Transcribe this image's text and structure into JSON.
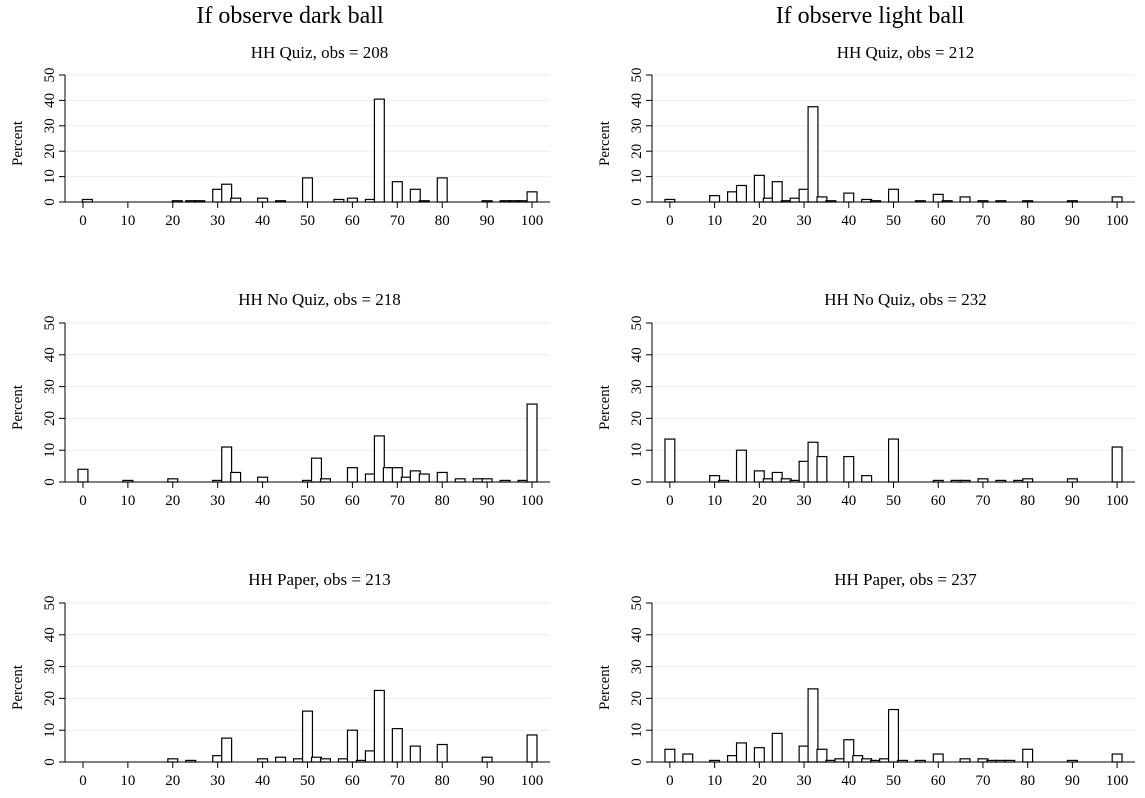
{
  "column_titles": [
    "If observe dark ball",
    "If observe light ball"
  ],
  "chart_data": [
    {
      "type": "bar",
      "title": "HH Quiz, obs = 208",
      "ylabel": "Percent",
      "xlim": [
        -4,
        104
      ],
      "ylim": [
        0,
        50
      ],
      "xticks": [
        0,
        10,
        20,
        30,
        40,
        50,
        60,
        70,
        80,
        90,
        100
      ],
      "yticks": [
        0,
        10,
        20,
        30,
        40,
        50
      ],
      "bin_width": 2.2,
      "x": [
        1,
        21,
        24,
        26,
        30,
        32,
        34,
        40,
        44,
        50,
        57,
        60,
        64,
        66,
        70,
        74,
        76,
        80,
        90,
        94,
        96,
        98,
        100
      ],
      "values": [
        1,
        0.5,
        0.5,
        0.5,
        5,
        7,
        1.5,
        1.5,
        0.5,
        9.5,
        1,
        1.5,
        1,
        40.5,
        8,
        5,
        0.5,
        9.5,
        0.5,
        0.5,
        0.5,
        0.5,
        4
      ]
    },
    {
      "type": "bar",
      "title": "HH Quiz, obs = 212",
      "ylabel": "Percent",
      "xlim": [
        -4,
        104
      ],
      "ylim": [
        0,
        50
      ],
      "xticks": [
        0,
        10,
        20,
        30,
        40,
        50,
        60,
        70,
        80,
        90,
        100
      ],
      "yticks": [
        0,
        10,
        20,
        30,
        40,
        50
      ],
      "bin_width": 2.2,
      "x": [
        0,
        10,
        14,
        16,
        20,
        22,
        24,
        26,
        28,
        30,
        32,
        34,
        36,
        40,
        44,
        46,
        50,
        56,
        60,
        62,
        66,
        70,
        74,
        80,
        90,
        100
      ],
      "values": [
        1,
        2.5,
        4,
        6.5,
        10.5,
        1.5,
        8,
        0.5,
        1.5,
        5,
        37.5,
        2,
        0.5,
        3.5,
        1,
        0.5,
        5,
        0.5,
        3,
        0.5,
        2,
        0.5,
        0.5,
        0.5,
        0.5,
        2
      ]
    },
    {
      "type": "bar",
      "title": "HH No Quiz, obs = 218",
      "ylabel": "Percent",
      "xlim": [
        -4,
        104
      ],
      "ylim": [
        0,
        50
      ],
      "xticks": [
        0,
        10,
        20,
        30,
        40,
        50,
        60,
        70,
        80,
        90,
        100
      ],
      "yticks": [
        0,
        10,
        20,
        30,
        40,
        50
      ],
      "bin_width": 2.2,
      "x": [
        0,
        10,
        20,
        30,
        32,
        34,
        40,
        50,
        52,
        54,
        60,
        64,
        66,
        68,
        70,
        72,
        74,
        76,
        80,
        84,
        88,
        90,
        94,
        98,
        100
      ],
      "values": [
        4,
        0.5,
        1,
        0.5,
        11,
        3,
        1.5,
        0.5,
        7.5,
        1,
        4.5,
        2.5,
        14.5,
        4.5,
        4.5,
        1.5,
        3.5,
        2.5,
        3,
        1,
        1,
        1,
        0.5,
        0.5,
        24.5
      ]
    },
    {
      "type": "bar",
      "title": "HH No Quiz, obs = 232",
      "ylabel": "Percent",
      "xlim": [
        -4,
        104
      ],
      "ylim": [
        0,
        50
      ],
      "xticks": [
        0,
        10,
        20,
        30,
        40,
        50,
        60,
        70,
        80,
        90,
        100
      ],
      "yticks": [
        0,
        10,
        20,
        30,
        40,
        50
      ],
      "bin_width": 2.2,
      "x": [
        0,
        10,
        12,
        16,
        20,
        22,
        24,
        26,
        28,
        30,
        32,
        34,
        40,
        44,
        50,
        60,
        64,
        66,
        70,
        74,
        78,
        80,
        90,
        100
      ],
      "values": [
        13.5,
        2,
        0.5,
        10,
        3.5,
        1,
        3,
        1,
        0.5,
        6.5,
        12.5,
        8,
        8,
        2,
        13.5,
        0.5,
        0.5,
        0.5,
        1,
        0.5,
        0.5,
        1,
        1,
        11
      ]
    },
    {
      "type": "bar",
      "title": "HH Paper, obs = 213",
      "ylabel": "Percent",
      "xlim": [
        -4,
        104
      ],
      "ylim": [
        0,
        50
      ],
      "xticks": [
        0,
        10,
        20,
        30,
        40,
        50,
        60,
        70,
        80,
        90,
        100
      ],
      "yticks": [
        0,
        10,
        20,
        30,
        40,
        50
      ],
      "bin_width": 2.2,
      "x": [
        20,
        24,
        30,
        32,
        40,
        44,
        48,
        50,
        52,
        54,
        58,
        60,
        62,
        64,
        66,
        70,
        74,
        80,
        90,
        100
      ],
      "values": [
        1,
        0.5,
        2,
        7.5,
        1,
        1.5,
        1,
        16,
        1.5,
        1,
        1,
        10,
        0.5,
        3.5,
        22.5,
        10.5,
        5,
        5.5,
        1.5,
        8.5
      ]
    },
    {
      "type": "bar",
      "title": "HH Paper, obs = 237",
      "ylabel": "Percent",
      "xlim": [
        -4,
        104
      ],
      "ylim": [
        0,
        50
      ],
      "xticks": [
        0,
        10,
        20,
        30,
        40,
        50,
        60,
        70,
        80,
        90,
        100
      ],
      "yticks": [
        0,
        10,
        20,
        30,
        40,
        50
      ],
      "bin_width": 2.2,
      "x": [
        0,
        4,
        10,
        14,
        16,
        20,
        24,
        30,
        32,
        34,
        36,
        38,
        40,
        42,
        44,
        46,
        48,
        50,
        52,
        56,
        60,
        66,
        70,
        72,
        74,
        76,
        80,
        90,
        100
      ],
      "values": [
        4,
        2.5,
        0.5,
        2,
        6,
        4.5,
        9,
        5,
        23,
        4,
        0.5,
        1,
        7,
        2,
        1,
        0.5,
        1,
        16.5,
        0.5,
        0.5,
        2.5,
        1,
        1,
        0.5,
        0.5,
        0.5,
        4,
        0.5,
        2.5
      ]
    }
  ]
}
